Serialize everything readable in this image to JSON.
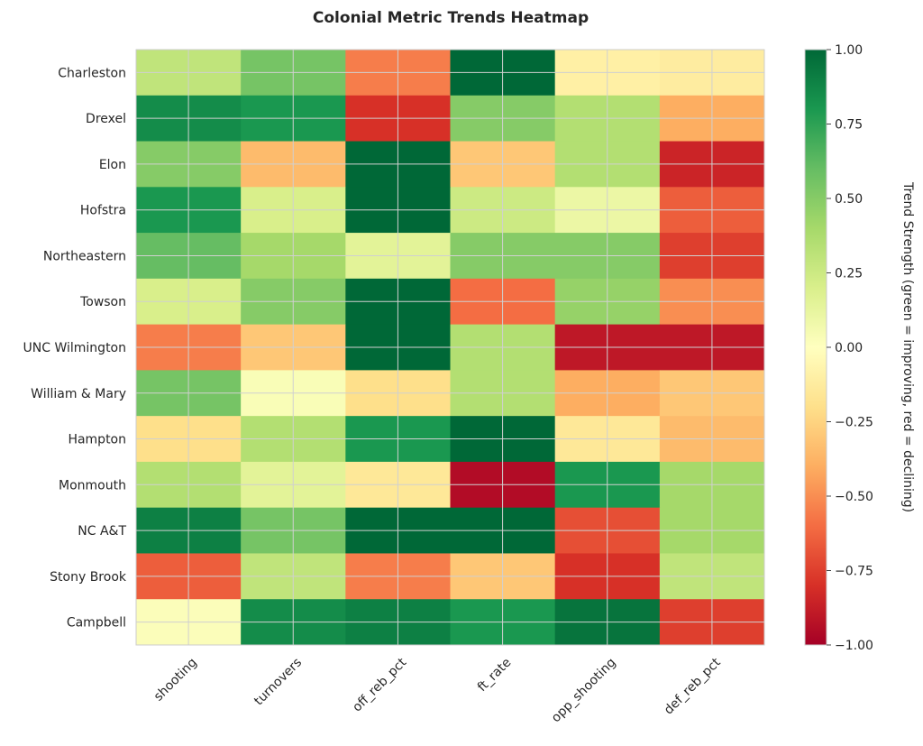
{
  "chart_data": {
    "type": "heatmap",
    "title": "Colonial Metric Trends Heatmap",
    "rows": [
      "Charleston",
      "Drexel",
      "Elon",
      "Hofstra",
      "Northeastern",
      "Towson",
      "UNC Wilmington",
      "William & Mary",
      "Hampton",
      "Monmouth",
      "NC A&T",
      "Stony Brook",
      "Campbell"
    ],
    "columns": [
      "shooting",
      "turnovers",
      "off_reb_pct",
      "ft_rate",
      "opp_shooting",
      "def_reb_pct"
    ],
    "values": [
      [
        0.3,
        0.55,
        -0.55,
        1.0,
        -0.1,
        -0.12
      ],
      [
        0.85,
        0.8,
        -0.8,
        0.5,
        0.35,
        -0.4
      ],
      [
        0.5,
        -0.35,
        1.0,
        -0.3,
        0.35,
        -0.85
      ],
      [
        0.8,
        0.2,
        1.0,
        0.25,
        0.1,
        -0.65
      ],
      [
        0.6,
        0.4,
        0.15,
        0.5,
        0.5,
        -0.75
      ],
      [
        0.2,
        0.5,
        1.0,
        -0.6,
        0.45,
        -0.5
      ],
      [
        -0.55,
        -0.3,
        1.0,
        0.35,
        -0.9,
        -0.9
      ],
      [
        0.55,
        0.03,
        -0.2,
        0.35,
        -0.4,
        -0.3
      ],
      [
        -0.2,
        0.35,
        0.8,
        1.0,
        -0.15,
        -0.35
      ],
      [
        0.35,
        0.15,
        -0.15,
        -0.95,
        0.8,
        0.4
      ],
      [
        0.9,
        0.55,
        1.0,
        1.0,
        -0.7,
        0.4
      ],
      [
        -0.65,
        0.3,
        -0.55,
        -0.3,
        -0.8,
        0.3
      ],
      [
        0.02,
        0.85,
        0.9,
        0.8,
        0.95,
        -0.75
      ]
    ],
    "colormap": "RdYlGn",
    "vmin": -1,
    "vmax": 1,
    "colorbar_label": "Trend Strength (green = improving, red = declining)",
    "colorbar_ticks": [
      "1.00",
      "0.75",
      "0.50",
      "0.25",
      "0.00",
      "−0.25",
      "−0.50",
      "−0.75",
      "−1.00"
    ],
    "grid": true
  }
}
